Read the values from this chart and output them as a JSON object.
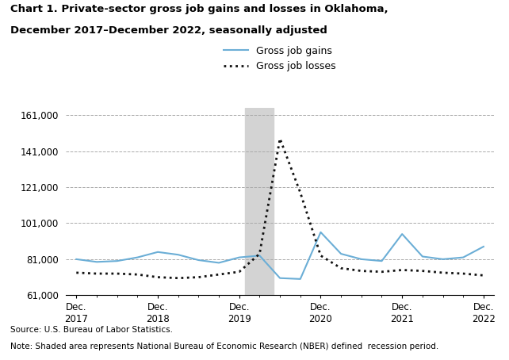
{
  "title_line1": "Chart 1. Private-sector gross job gains and losses in Oklahoma,",
  "title_line2": "December 2017–December 2022, seasonally adjusted",
  "legend_gains": "Gross job gains",
  "legend_losses": "Gross job losses",
  "source": "Source: U.S. Bureau of Labor Statistics.",
  "note": "Note: Shaded area represents National Bureau of Economic Research (NBER) defined  recession period.",
  "ylim": [
    61000,
    165000
  ],
  "yticks": [
    61000,
    81000,
    101000,
    121000,
    141000,
    161000
  ],
  "gains_color": "#6baed6",
  "losses_color": "#111111",
  "shade_color": "#d3d3d3",
  "recession_xstart": 8.3,
  "recession_xend": 9.7,
  "gains_q": [
    81000,
    79500,
    80000,
    82000,
    85000,
    83500,
    80500,
    79000,
    82000,
    83000,
    70500,
    70000,
    96000,
    84000,
    81000,
    80000,
    95000,
    82500,
    81000,
    82000,
    88000
  ],
  "losses_q": [
    73500,
    73000,
    73000,
    72500,
    71000,
    70500,
    71000,
    72500,
    74000,
    84000,
    148000,
    118000,
    83000,
    76000,
    74500,
    74000,
    75000,
    74500,
    73500,
    73000,
    72000
  ],
  "dec_ticks": [
    0,
    4,
    8,
    12,
    16,
    20
  ],
  "dec_labels": [
    "Dec.\n2017",
    "Dec.\n2018",
    "Dec.\n2019",
    "Dec.\n2020",
    "Dec.\n2021",
    "Dec.\n2022"
  ]
}
